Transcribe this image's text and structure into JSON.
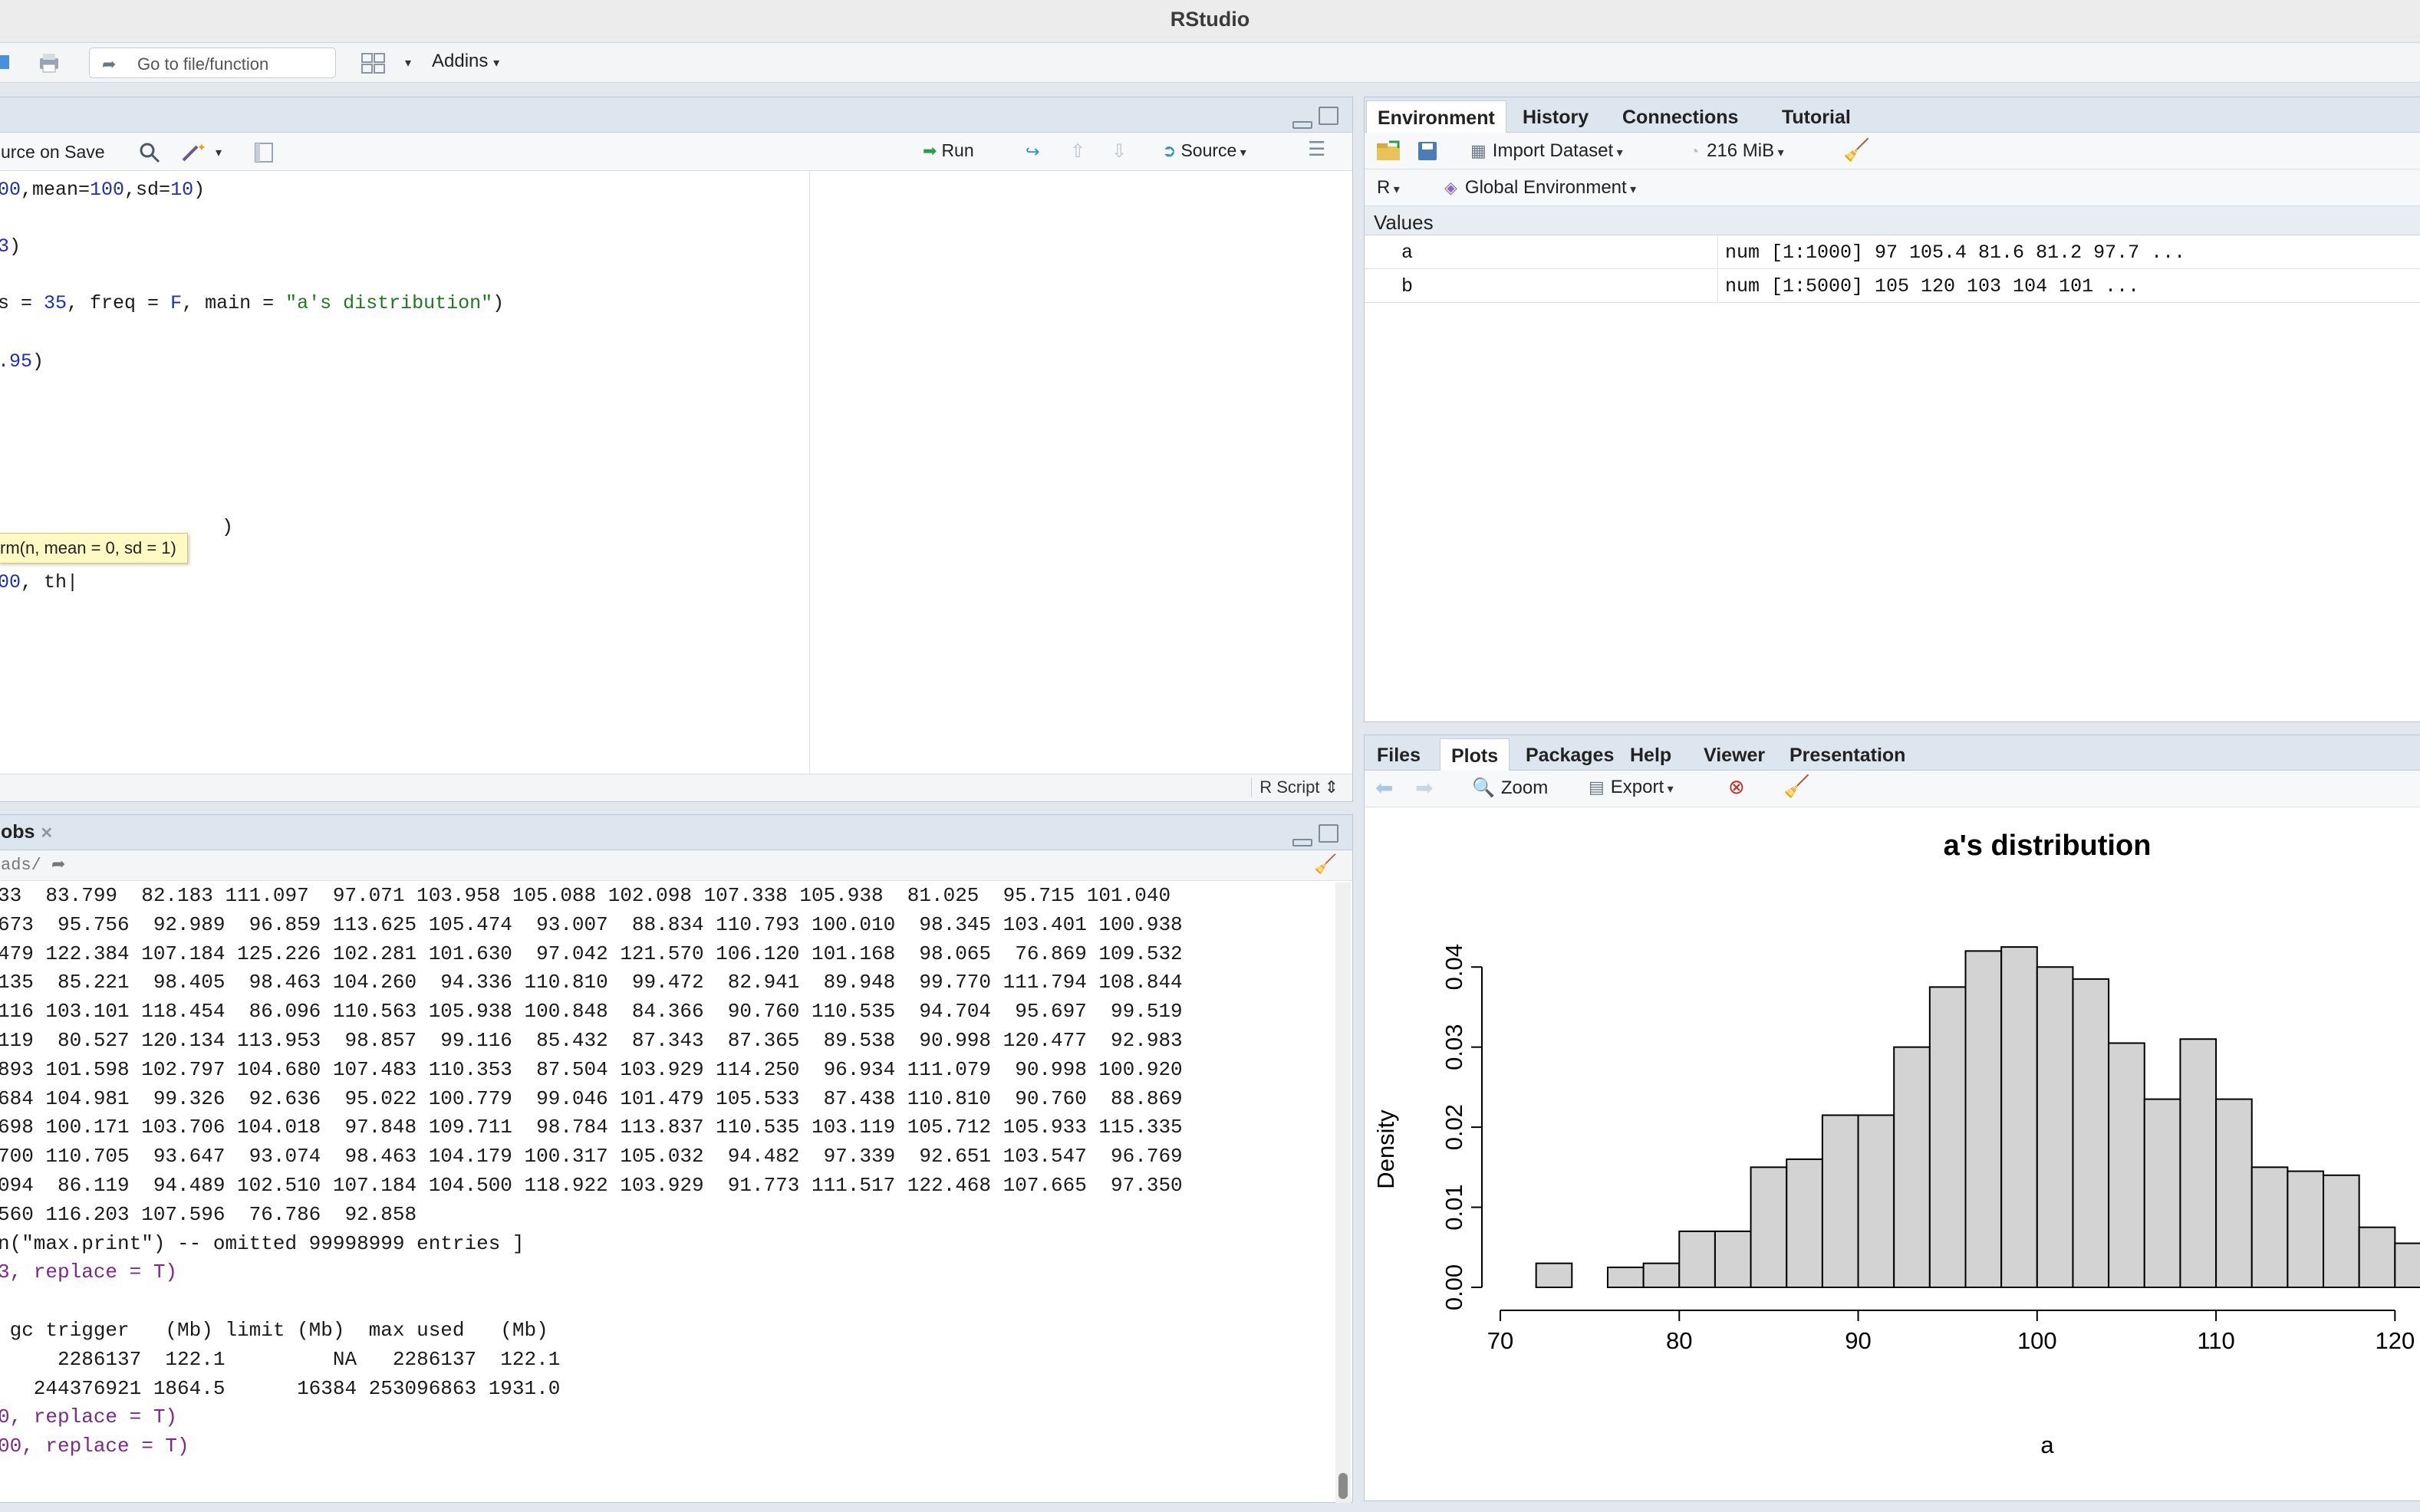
{
  "window": {
    "title": "RStudio"
  },
  "toolbar": {
    "goto_placeholder": "Go to file/function",
    "addins_label": "Addins"
  },
  "source": {
    "source_on_save": "urce on Save",
    "run_label": "Run",
    "source_label": "Source",
    "lang": "R Script",
    "tooltip": "rm(n, mean = 0, sd = 1)",
    "lines": [
      "00,mean=100,sd=10)",
      "3)",
      "s = 35, freq = F, main = \"a's distribution\")",
      ".95)",
      ")",
      "00, th"
    ]
  },
  "console": {
    "tab_label": "obs",
    "path": "ads/",
    "lines": [
      "33  83.799  82.183 111.097  97.071 103.958 105.088 102.098 107.338 105.938  81.025  95.715 101.040",
      "673  95.756  92.989  96.859 113.625 105.474  93.007  88.834 110.793 100.010  98.345 103.401 100.938",
      "479 122.384 107.184 125.226 102.281 101.630  97.042 121.570 106.120 101.168  98.065  76.869 109.532",
      "135  85.221  98.405  98.463 104.260  94.336 110.810  99.472  82.941  89.948  99.770 111.794 108.844",
      "116 103.101 118.454  86.096 110.563 105.938 100.848  84.366  90.760 110.535  94.704  95.697  99.519",
      "119  80.527 120.134 113.953  98.857  99.116  85.432  87.343  87.365  89.538  90.998 120.477  92.983",
      "893 101.598 102.797 104.680 107.483 110.353  87.504 103.929 114.250  96.934 111.079  90.998 100.920",
      "684 104.981  99.326  92.636  95.022 100.779  99.046 101.479 105.533  87.438 110.810  90.760  88.869",
      "698 100.171 103.706 104.018  97.848 109.711  98.784 113.837 110.535 103.119 105.712 105.933 115.335",
      "700 110.705  93.647  93.074  98.463 104.179 100.317 105.032  94.482  97.339  92.651 103.547  96.769",
      "094  86.119  94.489 102.510 107.184 104.500 118.922 103.929  91.773 111.517 122.468 107.665  97.350",
      "560 116.203 107.596  76.786  92.858",
      "n(\"max.print\") -- omitted 99998999 entries ]",
      "3, replace = T)",
      "",
      " gc trigger   (Mb) limit (Mb)  max used   (Mb)",
      "     2286137  122.1         NA   2286137  122.1",
      "   244376921 1864.5      16384 253096863 1931.0",
      "0, replace = T)",
      "00, replace = T)"
    ],
    "cmd_lines": [
      13,
      18,
      19
    ]
  },
  "environment": {
    "tabs": [
      "Environment",
      "History",
      "Connections",
      "Tutorial"
    ],
    "import_label": "Import Dataset",
    "memory": "216 MiB",
    "lang": "R",
    "scope": "Global Environment",
    "section": "Values",
    "rows": [
      {
        "name": "a",
        "value": "num [1:1000] 97 105.4 81.6 81.2 97.7 ..."
      },
      {
        "name": "b",
        "value": "num [1:5000] 105 120 103 104 101 ..."
      }
    ]
  },
  "plots": {
    "tabs": [
      "Files",
      "Plots",
      "Packages",
      "Help",
      "Viewer",
      "Presentation"
    ],
    "zoom_label": "Zoom",
    "export_label": "Export"
  },
  "chart_data": {
    "type": "bar",
    "title": "a's distribution",
    "xlabel": "a",
    "ylabel": "Density",
    "xlim": [
      70,
      122
    ],
    "ylim": [
      0,
      0.045
    ],
    "xticks": [
      "70",
      "80",
      "90",
      "100",
      "110",
      "120"
    ],
    "yticks": [
      "0.00",
      "0.01",
      "0.02",
      "0.03",
      "0.04"
    ],
    "bins": [
      {
        "x0": 72,
        "x1": 74,
        "density": 0.003
      },
      {
        "x0": 74,
        "x1": 76,
        "density": 0.0
      },
      {
        "x0": 76,
        "x1": 78,
        "density": 0.0025
      },
      {
        "x0": 78,
        "x1": 80,
        "density": 0.003
      },
      {
        "x0": 80,
        "x1": 82,
        "density": 0.007
      },
      {
        "x0": 82,
        "x1": 84,
        "density": 0.007
      },
      {
        "x0": 84,
        "x1": 86,
        "density": 0.015
      },
      {
        "x0": 86,
        "x1": 88,
        "density": 0.016
      },
      {
        "x0": 88,
        "x1": 90,
        "density": 0.0215
      },
      {
        "x0": 90,
        "x1": 92,
        "density": 0.0215
      },
      {
        "x0": 92,
        "x1": 94,
        "density": 0.03
      },
      {
        "x0": 94,
        "x1": 96,
        "density": 0.0375
      },
      {
        "x0": 96,
        "x1": 98,
        "density": 0.042
      },
      {
        "x0": 98,
        "x1": 100,
        "density": 0.0425
      },
      {
        "x0": 100,
        "x1": 102,
        "density": 0.04
      },
      {
        "x0": 102,
        "x1": 104,
        "density": 0.0385
      },
      {
        "x0": 104,
        "x1": 106,
        "density": 0.0305
      },
      {
        "x0": 106,
        "x1": 108,
        "density": 0.0235
      },
      {
        "x0": 108,
        "x1": 110,
        "density": 0.031
      },
      {
        "x0": 110,
        "x1": 112,
        "density": 0.0235
      },
      {
        "x0": 112,
        "x1": 114,
        "density": 0.015
      },
      {
        "x0": 114,
        "x1": 116,
        "density": 0.0145
      },
      {
        "x0": 116,
        "x1": 118,
        "density": 0.014
      },
      {
        "x0": 118,
        "x1": 120,
        "density": 0.0075
      },
      {
        "x0": 120,
        "x1": 122,
        "density": 0.0055
      }
    ],
    "colors": {
      "bar_fill": "#d3d3d3",
      "bar_stroke": "#000000"
    }
  }
}
